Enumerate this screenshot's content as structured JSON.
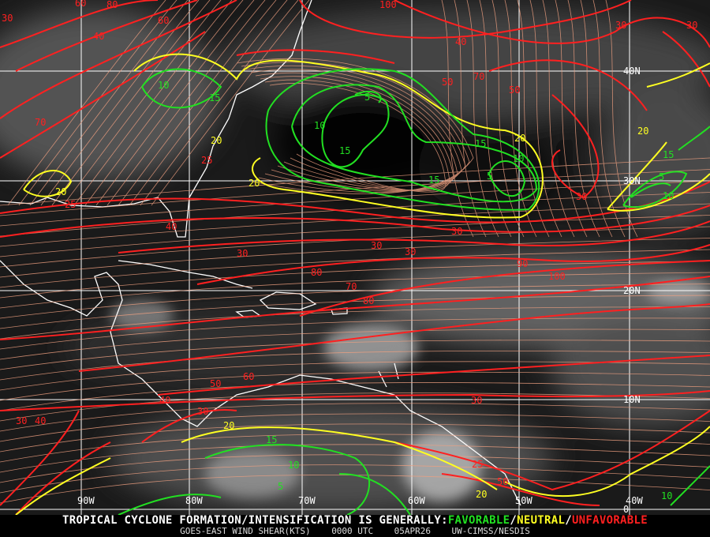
{
  "footer": {
    "headline": "TROPICAL CYCLONE FORMATION/INTENSIFICATION IS GENERALLY:",
    "favorable": "FAVORABLE",
    "neutral": "NEUTRAL",
    "unfavorable": "UNFAVORABLE",
    "sep": "/",
    "product": "GOES-EAST WIND SHEAR(KTS)",
    "time": "0000 UTC",
    "date": "05APR26",
    "source": "UW-CIMSS/NESDIS"
  },
  "colors": {
    "favorable": "#22e022",
    "neutral": "#ffff22",
    "unfavorable": "#ff2020",
    "streamline": "#f0a080",
    "grid": "#ffffff"
  },
  "longitude_labels": [
    "90W",
    "80W",
    "70W",
    "60W",
    "50W",
    "40W"
  ],
  "latitude_labels": [
    "40N",
    "30N",
    "20N",
    "10N",
    "0"
  ],
  "contour_labels": {
    "favorable": [
      "10",
      "15",
      "5",
      "10",
      "15",
      "15",
      "15",
      "10",
      "5",
      "15",
      "5",
      "10",
      "15",
      "10",
      "5",
      "10"
    ],
    "neutral": [
      "20",
      "20",
      "20",
      "20",
      "20",
      "20",
      "20"
    ],
    "unfavorable": [
      "30",
      "60",
      "40",
      "60",
      "70",
      "80",
      "100",
      "40",
      "50",
      "70",
      "30",
      "25",
      "25",
      "40",
      "30",
      "30",
      "30",
      "30",
      "50",
      "70",
      "80",
      "90",
      "100",
      "80",
      "60",
      "50",
      "40",
      "30",
      "30",
      "25",
      "50",
      "30",
      "40",
      "30",
      "30"
    ]
  }
}
